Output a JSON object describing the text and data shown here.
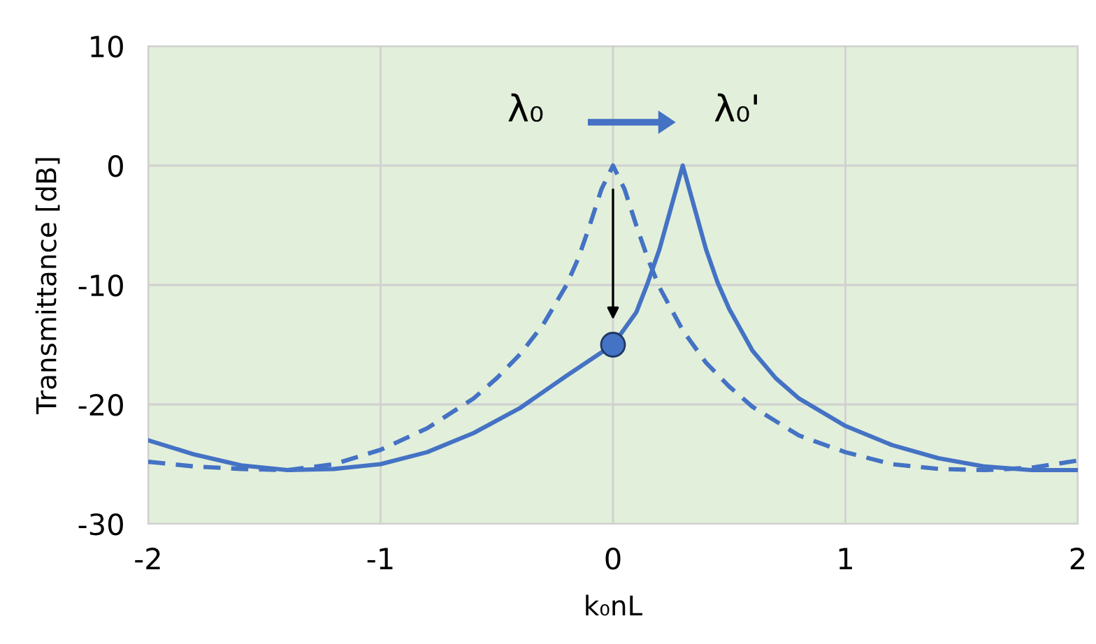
{
  "chart_data": {
    "type": "line",
    "xlabel": "k₀nL",
    "ylabel": "Transmittance [dB]",
    "xlim": [
      -2,
      2
    ],
    "xticks": [
      -2,
      -1,
      0,
      1,
      2
    ],
    "ylim": [
      -30,
      10
    ],
    "yticks": [
      -30,
      -20,
      -10,
      0,
      10
    ],
    "grid": true,
    "series": [
      {
        "line_style": "dashed",
        "color": "#4472c4",
        "x": [
          -2,
          -1.8,
          -1.6,
          -1.4,
          -1.2,
          -1.0,
          -0.8,
          -0.6,
          -0.5,
          -0.4,
          -0.3,
          -0.2,
          -0.15,
          -0.1,
          -0.05,
          0,
          0.05,
          0.1,
          0.15,
          0.2,
          0.3,
          0.4,
          0.5,
          0.6,
          0.8,
          1.0,
          1.2,
          1.4,
          1.6,
          1.8,
          2.0
        ],
        "values": [
          -24.8,
          -25.2,
          -25.4,
          -25.5,
          -25.0,
          -23.8,
          -22.0,
          -19.5,
          -17.8,
          -15.8,
          -13.3,
          -10,
          -7.8,
          -5,
          -2,
          0,
          -2,
          -5,
          -7.8,
          -10.2,
          -13.8,
          -16.5,
          -18.5,
          -20.2,
          -22.6,
          -24,
          -25,
          -25.4,
          -25.5,
          -25.3,
          -24.7
        ]
      },
      {
        "line_style": "solid",
        "color": "#4472c4",
        "x": [
          -2,
          -1.8,
          -1.6,
          -1.4,
          -1.2,
          -1.0,
          -0.8,
          -0.6,
          -0.4,
          -0.2,
          0,
          0.1,
          0.15,
          0.2,
          0.25,
          0.3,
          0.35,
          0.4,
          0.45,
          0.5,
          0.6,
          0.7,
          0.8,
          1.0,
          1.2,
          1.4,
          1.6,
          1.8,
          2.0
        ],
        "values": [
          -23.0,
          -24.2,
          -25.1,
          -25.5,
          -25.4,
          -25.0,
          -24.0,
          -22.4,
          -20.3,
          -17.6,
          -15,
          -12.3,
          -9.8,
          -7,
          -3.5,
          0,
          -3.5,
          -7,
          -9.8,
          -12.0,
          -15.5,
          -17.8,
          -19.5,
          -21.8,
          -23.4,
          -24.5,
          -25.2,
          -25.5,
          -25.5
        ]
      },
      {
        "type": "scatter",
        "marker": "circle",
        "color": "#4472c4",
        "x": [
          0
        ],
        "values": [
          -15
        ]
      }
    ],
    "annotations": [
      {
        "text": "λ₀",
        "x": 0,
        "y": 0
      },
      {
        "text": "λ₀'",
        "x": 0.3,
        "y": 0
      }
    ]
  }
}
